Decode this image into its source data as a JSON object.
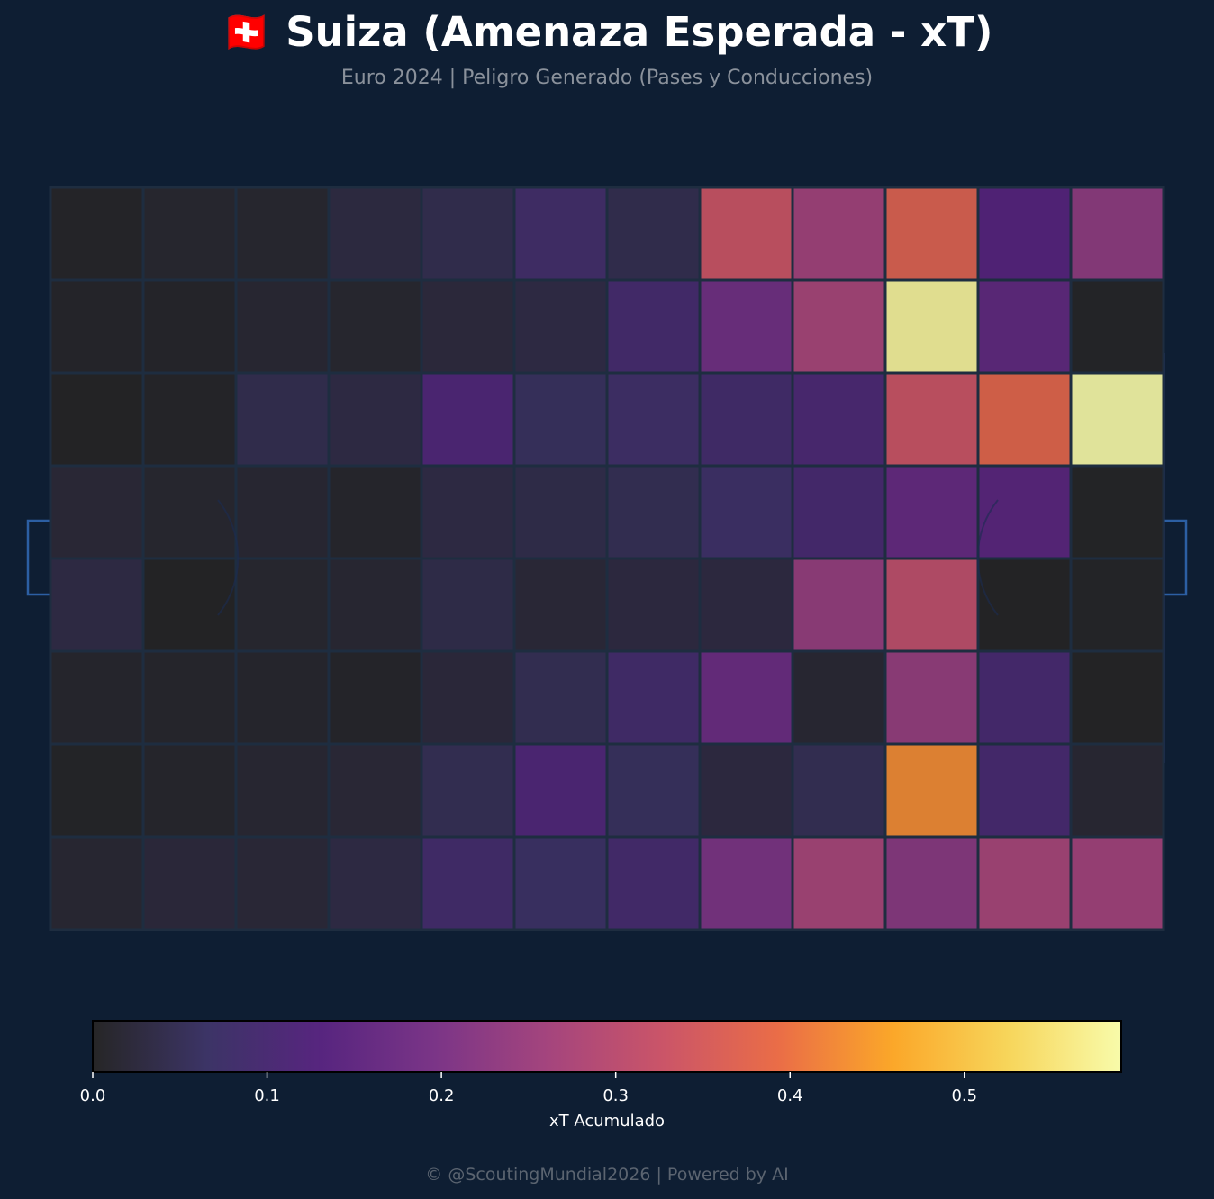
{
  "header": {
    "title": "🇨🇭 Suiza (Amenaza Esperada - xT)",
    "subtitle": "Euro 2024 | Peligro Generado (Pases y Conducciones)"
  },
  "footer": {
    "credit": "© @ScoutingMundial2026 | Powered by AI"
  },
  "colors": {
    "background": "#0e1e33",
    "grid_line": "#1e2d40",
    "pitch_line": "#1a2b52",
    "goal": "#2c5fa3",
    "colormap_stops": [
      "#262626",
      "#3c3466",
      "#57257f",
      "#7b3587",
      "#a5457d",
      "#cb5568",
      "#ea6d47",
      "#fba729",
      "#f7d55a",
      "#f8fbaa"
    ]
  },
  "chart_data": {
    "type": "heatmap",
    "rows": 8,
    "cols": 12,
    "values": [
      [
        0.005,
        0.012,
        0.012,
        0.032,
        0.045,
        0.085,
        0.045,
        0.33,
        0.26,
        0.37,
        0.13,
        0.23
      ],
      [
        0.006,
        0.006,
        0.015,
        0.012,
        0.026,
        0.035,
        0.095,
        0.18,
        0.27,
        0.58,
        0.15,
        0.004
      ],
      [
        0.002,
        0.005,
        0.045,
        0.035,
        0.12,
        0.06,
        0.08,
        0.09,
        0.11,
        0.33,
        0.38,
        0.59
      ],
      [
        0.02,
        0.012,
        0.015,
        0.008,
        0.035,
        0.04,
        0.05,
        0.075,
        0.1,
        0.16,
        0.14,
        0.003
      ],
      [
        0.035,
        0.002,
        0.012,
        0.015,
        0.04,
        0.022,
        0.03,
        0.03,
        0.24,
        0.31,
        0.002,
        0.004
      ],
      [
        0.01,
        0.008,
        0.01,
        0.006,
        0.025,
        0.05,
        0.09,
        0.17,
        0.015,
        0.24,
        0.1,
        0.002
      ],
      [
        0.004,
        0.008,
        0.015,
        0.02,
        0.05,
        0.12,
        0.06,
        0.03,
        0.05,
        0.43,
        0.1,
        0.015
      ],
      [
        0.015,
        0.025,
        0.022,
        0.035,
        0.09,
        0.07,
        0.095,
        0.2,
        0.27,
        0.22,
        0.27,
        0.26
      ]
    ],
    "colorbar": {
      "label": "xT Acumulado",
      "min": 0,
      "max": 0.59,
      "ticks": [
        0.0,
        0.1,
        0.2,
        0.3,
        0.4,
        0.5
      ],
      "tick_labels": [
        "0.0",
        "0.1",
        "0.2",
        "0.3",
        "0.4",
        "0.5"
      ],
      "orientation": "horizontal"
    }
  }
}
